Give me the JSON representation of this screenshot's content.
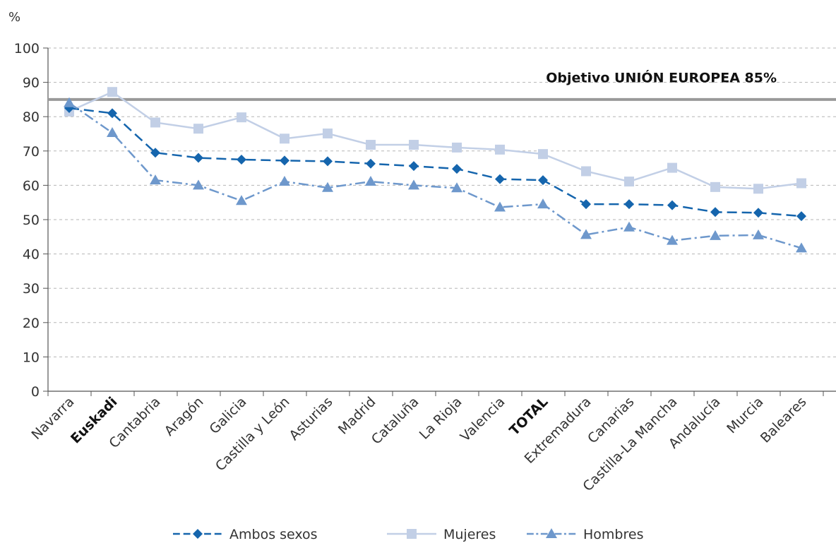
{
  "chart_data": {
    "type": "line",
    "ylabel": "%",
    "ylim": [
      0,
      100
    ],
    "yticks": [
      0,
      10,
      20,
      30,
      40,
      50,
      60,
      70,
      80,
      90,
      100
    ],
    "grid": true,
    "legend_position": "bottom",
    "categories": [
      "Navarra",
      "Euskadi",
      "Cantabria",
      "Aragón",
      "Galicia",
      "Castilla y León",
      "Asturias",
      "Madrid",
      "Cataluña",
      "La Rioja",
      "Valencia",
      "TOTAL",
      "Extremadura",
      "Canarias",
      "Castilla-La Mancha",
      "Andalucía",
      "Murcia",
      "Baleares"
    ],
    "bold_categories": [
      "Euskadi",
      "TOTAL"
    ],
    "target": {
      "label": "Objetivo UNIÓN EUROPEA 85%",
      "value": 85,
      "color": "#999999"
    },
    "series": [
      {
        "name": "Ambos sexos",
        "color": "#1565ad",
        "marker": "diamond",
        "dash": "14 7",
        "values": [
          82.5,
          81,
          69.5,
          68,
          67.5,
          67.2,
          67,
          66.3,
          65.6,
          64.8,
          61.8,
          61.5,
          54.5,
          54.5,
          54.2,
          52.2,
          52,
          51
        ]
      },
      {
        "name": "Mujeres",
        "color": "#c2cfe6",
        "marker": "square",
        "dash": "",
        "values": [
          81.5,
          87.2,
          78.3,
          76.5,
          79.8,
          73.6,
          75.1,
          71.8,
          71.8,
          71,
          70.4,
          69.1,
          64.1,
          61.1,
          65.1,
          59.5,
          59,
          60.6
        ]
      },
      {
        "name": "Hombres",
        "color": "#6e98cc",
        "marker": "triangle",
        "dash": "14 5 3 5",
        "values": [
          84,
          75.3,
          61.5,
          60,
          55.5,
          61.1,
          59.3,
          61.1,
          60,
          59.2,
          53.6,
          54.5,
          45.6,
          47.8,
          43.9,
          45.3,
          45.5,
          41.7
        ]
      }
    ]
  }
}
